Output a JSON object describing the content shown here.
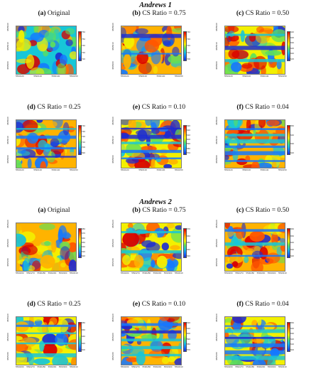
{
  "sections": [
    {
      "title": "Andrews 1",
      "panels": [
        {
          "letter": "(a)",
          "label": "Original",
          "yticks": [
            "4895000",
            "4895010",
            "4895020"
          ],
          "xticks": [
            "5590120",
            "5590130",
            "5590140",
            "5590150"
          ],
          "cbar": [
            "760",
            "750",
            "740",
            "730",
            "720"
          ]
        },
        {
          "letter": "(b)",
          "label": "CS Ratio = 0.75",
          "yticks": [
            "4895000",
            "4895010",
            "4895020"
          ],
          "xticks": [
            "5590120",
            "5590130",
            "5590140",
            "5590150"
          ],
          "cbar": [
            "740",
            "730",
            "720",
            "710",
            "700"
          ]
        },
        {
          "letter": "(c)",
          "label": "CS Ratio = 0.50",
          "yticks": [
            "4895000",
            "4895010",
            "4895020"
          ],
          "xticks": [
            "5590120",
            "5590130",
            "5590140",
            "5590150"
          ],
          "cbar": [
            "640",
            "635",
            "630",
            "625",
            "620",
            "615"
          ]
        },
        {
          "letter": "(d)",
          "label": "CS Ratio = 0.25",
          "yticks": [
            "4895000",
            "4895010",
            "4895020"
          ],
          "xticks": [
            "5590120",
            "5590130",
            "5590140",
            "5590150"
          ],
          "cbar": [
            "740",
            "730",
            "720",
            "710",
            "700",
            "690"
          ]
        },
        {
          "letter": "(e)",
          "label": "CS Ratio = 0.10",
          "yticks": [
            "4895000",
            "4895010",
            "4895020"
          ],
          "xticks": [
            "5590120",
            "5590130",
            "5590140",
            "5590150"
          ],
          "cbar": [
            "630",
            "620",
            "610",
            "600",
            "590",
            "580",
            "570"
          ]
        },
        {
          "letter": "(f)",
          "label": "CS Ratio = 0.04",
          "yticks": [
            "4895000",
            "4895010",
            "4895020"
          ],
          "xticks": [
            "5590120",
            "5590130",
            "5590140",
            "5590150"
          ],
          "cbar": [
            "650",
            "640",
            "630",
            "620"
          ]
        }
      ]
    },
    {
      "title": "Andrews 2",
      "panels": [
        {
          "letter": "(a)",
          "label": "Original",
          "yticks": [
            "4895180",
            "4895200",
            "4895220"
          ],
          "xticks": [
            "5590260",
            "5590270",
            "5590280",
            "5590290",
            "5590300",
            "5590310"
          ],
          "cbar": [
            "680",
            "670",
            "660",
            "650",
            "640",
            "630",
            "620"
          ]
        },
        {
          "letter": "(b)",
          "label": "CS Ratio = 0.75",
          "yticks": [
            "4895180",
            "4895200",
            "4895220"
          ],
          "xticks": [
            "5590260",
            "5590270",
            "5590280",
            "5590290",
            "5590300",
            "5590310"
          ],
          "cbar": [
            "670",
            "660",
            "650",
            "640",
            "630"
          ]
        },
        {
          "letter": "(c)",
          "label": "CS Ratio = 0.50",
          "yticks": [
            "4895180",
            "4895200",
            "4895220"
          ],
          "xticks": [
            "5590260",
            "5590270",
            "5590280",
            "5590290",
            "5590300",
            "5590310"
          ],
          "cbar": [
            "660",
            "650",
            "640",
            "630",
            "620"
          ]
        },
        {
          "letter": "(d)",
          "label": "CS Ratio = 0.25",
          "yticks": [
            "4895180",
            "4895200",
            "4895220"
          ],
          "xticks": [
            "5590260",
            "5590270",
            "5590280",
            "5590290",
            "5590300",
            "5590310"
          ],
          "cbar": [
            "680",
            "660",
            "640",
            "620",
            "600"
          ]
        },
        {
          "letter": "(e)",
          "label": "CS Ratio = 0.10",
          "yticks": [
            "4895180",
            "4895200",
            "4895220"
          ],
          "xticks": [
            "5590260",
            "5590270",
            "5590280",
            "5590290",
            "5590300",
            "5590310"
          ],
          "cbar": [
            "620",
            "610",
            "600",
            "590",
            "580",
            "570"
          ]
        },
        {
          "letter": "(f)",
          "label": "CS Ratio = 0.04",
          "yticks": [
            "4895180",
            "4895200",
            "4895220"
          ],
          "xticks": [
            "5590260",
            "5590270",
            "5590280",
            "5590290",
            "5590300",
            "5590310"
          ],
          "cbar": [
            "650",
            "640",
            "630",
            "620",
            "610",
            "600"
          ]
        }
      ]
    }
  ],
  "colormap": [
    "#1b2bd4",
    "#1478ff",
    "#17c6d8",
    "#5fe05a",
    "#f3f000",
    "#ffb300",
    "#ff5500",
    "#d90000"
  ]
}
